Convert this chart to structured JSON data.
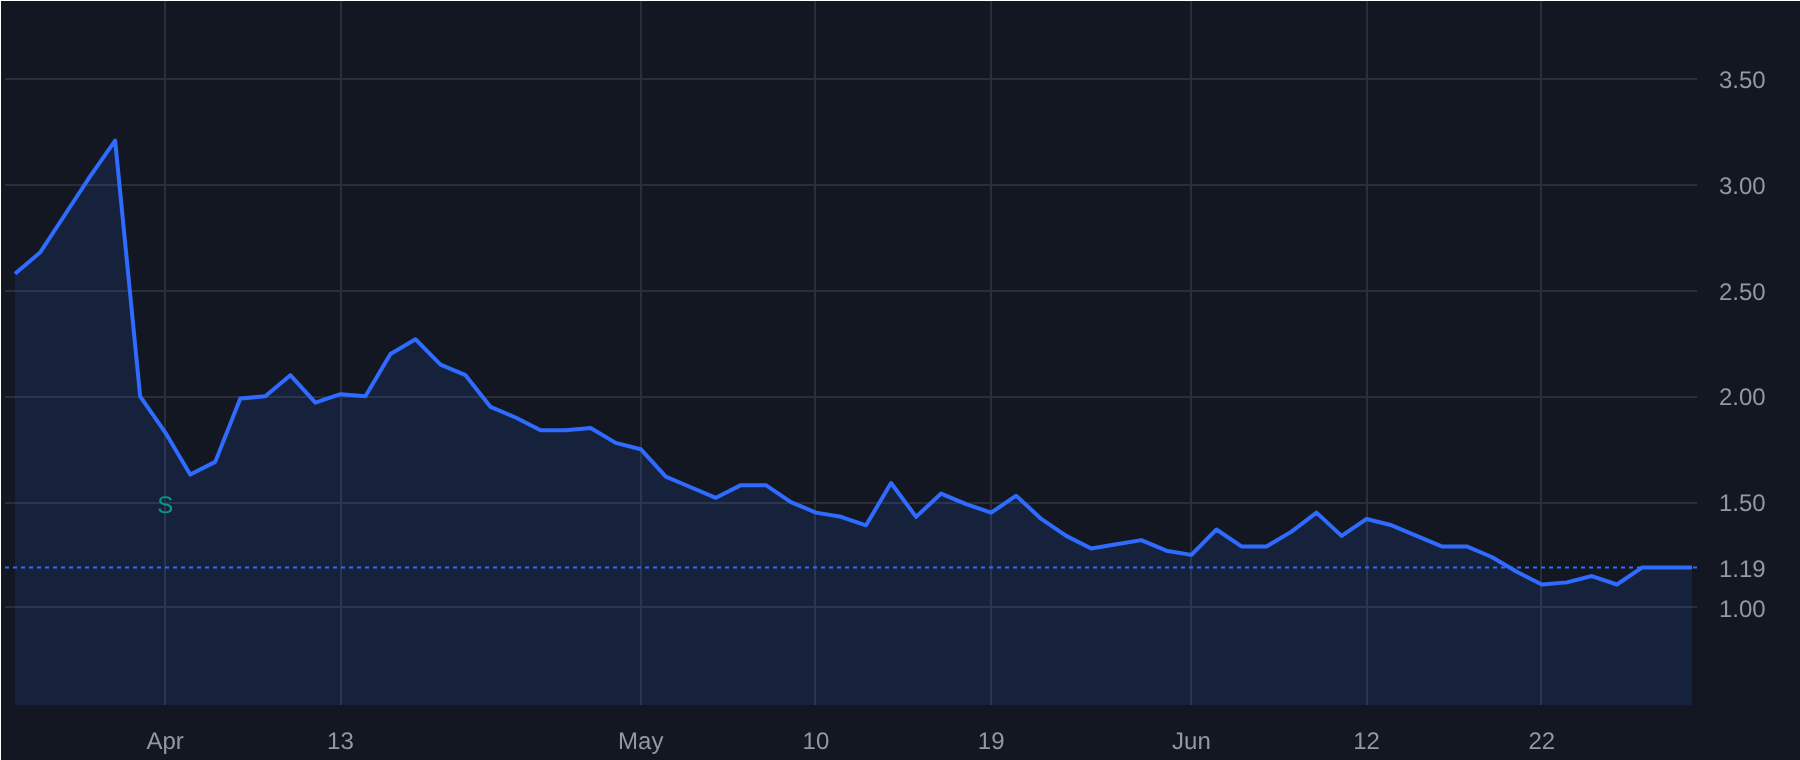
{
  "chart_data": {
    "type": "area",
    "categories": [
      null,
      null,
      null,
      null,
      null,
      null,
      "Apr",
      null,
      null,
      null,
      null,
      null,
      null,
      "13",
      null,
      null,
      null,
      null,
      null,
      null,
      null,
      null,
      null,
      null,
      null,
      "May",
      null,
      null,
      null,
      null,
      null,
      null,
      "10",
      null,
      null,
      null,
      null,
      null,
      null,
      "19",
      null,
      null,
      null,
      null,
      null,
      null,
      null,
      "Jun",
      null,
      null,
      null,
      null,
      null,
      null,
      "12",
      null,
      null,
      null,
      null,
      null,
      null,
      "22",
      null,
      null,
      null,
      null,
      null,
      null
    ],
    "series": [
      {
        "color": "#2f6bff",
        "values": [
          2.58,
          2.68,
          2.86,
          3.04,
          3.21,
          2.0,
          1.83,
          1.63,
          1.69,
          1.99,
          2.0,
          2.1,
          1.97,
          2.01,
          2.0,
          2.2,
          2.27,
          2.15,
          2.1,
          1.95,
          1.9,
          1.84,
          1.84,
          1.85,
          1.78,
          1.75,
          1.62,
          1.57,
          1.52,
          1.58,
          1.58,
          1.5,
          1.45,
          1.43,
          1.39,
          1.59,
          1.43,
          1.54,
          1.49,
          1.45,
          1.53,
          1.42,
          1.34,
          1.28,
          1.3,
          1.32,
          1.27,
          1.25,
          1.37,
          1.29,
          1.29,
          1.36,
          1.45,
          1.34,
          1.42,
          1.39,
          1.34,
          1.29,
          1.29,
          1.24,
          1.17,
          1.11,
          1.12,
          1.15,
          1.11,
          1.19,
          1.19,
          1.19
        ]
      }
    ],
    "ylim": [
      0.54,
      3.87
    ],
    "yticks": [
      {
        "value": 1.0,
        "label": "1.00"
      },
      {
        "value": 1.5,
        "label": "1.50"
      },
      {
        "value": 2.0,
        "label": "2.00"
      },
      {
        "value": 2.5,
        "label": "2.50"
      },
      {
        "value": 3.0,
        "label": "3.00"
      },
      {
        "value": 3.5,
        "label": "3.50"
      }
    ],
    "grid": true,
    "ref_lines": [
      {
        "axis": "y",
        "value": 1.19,
        "label": "1.19",
        "color": "#2f6bff",
        "line_style": "dotted"
      }
    ],
    "annotations": [
      {
        "text": "S",
        "x": "Apr",
        "y": 1.83
      }
    ]
  }
}
